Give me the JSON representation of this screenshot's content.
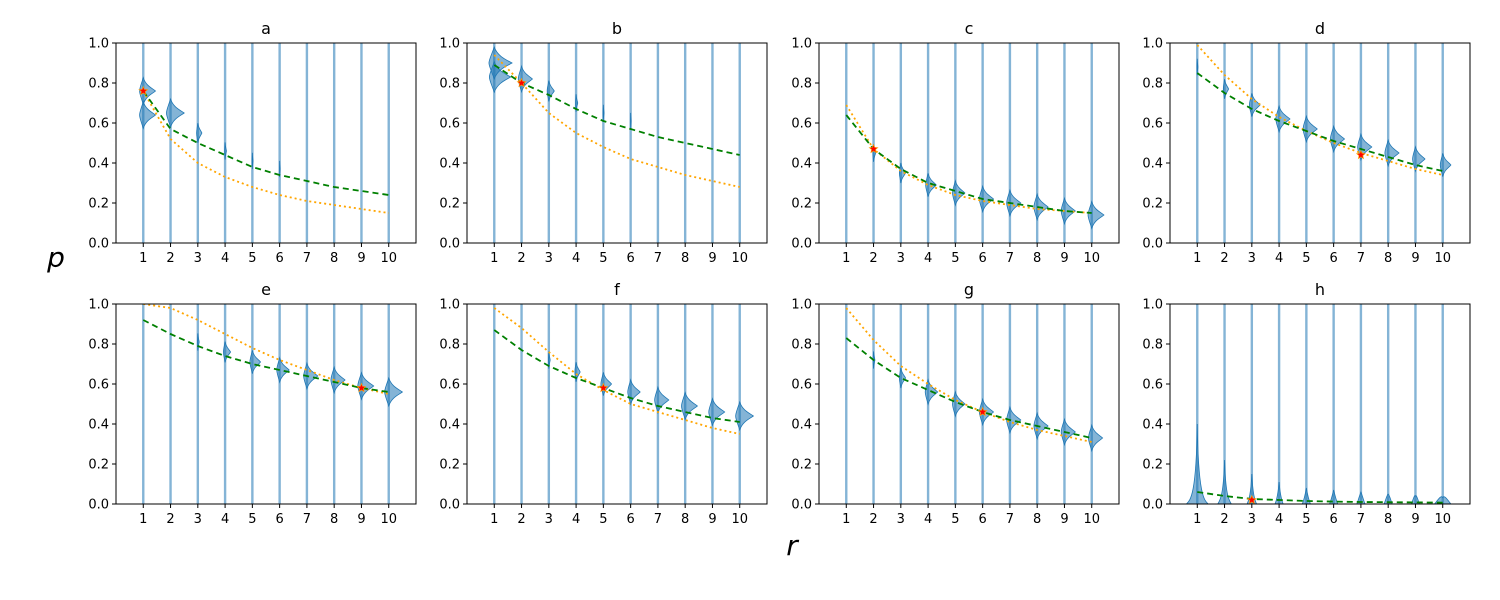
{
  "chart_data": {
    "type": "violin",
    "ylabel": "p",
    "xlabel": "r",
    "xticks": [
      1,
      2,
      3,
      4,
      5,
      6,
      7,
      8,
      9,
      10
    ],
    "yticks": [
      0.0,
      0.2,
      0.4,
      0.6,
      0.8,
      1.0
    ],
    "ytick_labels": [
      "0.0",
      "0.2",
      "0.4",
      "0.6",
      "0.8",
      "1.0"
    ],
    "ylim": [
      0,
      1
    ],
    "xlim": [
      0,
      11
    ],
    "colors": {
      "violin": "#1f77b4",
      "green": "#008000",
      "orange": "#ffa500",
      "marker": "#ff0000"
    },
    "panels": [
      {
        "title": "a",
        "highlight": [
          1,
          0.76
        ],
        "green": [
          0.76,
          0.57,
          0.5,
          0.44,
          0.38,
          0.34,
          0.31,
          0.28,
          0.26,
          0.24
        ],
        "orange": [
          0.76,
          0.52,
          0.4,
          0.33,
          0.28,
          0.24,
          0.21,
          0.19,
          0.17,
          0.15
        ],
        "violins": [
          {
            "x": 1,
            "y": 0.76,
            "w": 0.9
          },
          {
            "x": 1,
            "y": 0.64,
            "w": 0.9
          },
          {
            "x": 2,
            "y": 0.65,
            "w": 1.0
          },
          {
            "x": 3,
            "y": 0.55,
            "w": 0.3
          },
          {
            "x": 4,
            "y": 0.46,
            "w": 0.1
          },
          {
            "x": 5,
            "y": 0.41,
            "w": 0.05
          },
          {
            "x": 6,
            "y": 0.37,
            "w": 0.03
          }
        ]
      },
      {
        "title": "b",
        "highlight": [
          2,
          0.8
        ],
        "green": [
          0.89,
          0.8,
          0.74,
          0.67,
          0.61,
          0.57,
          0.53,
          0.5,
          0.47,
          0.44
        ],
        "orange": [
          0.94,
          0.8,
          0.65,
          0.55,
          0.48,
          0.42,
          0.38,
          0.34,
          0.31,
          0.28
        ],
        "violins": [
          {
            "x": 1,
            "y": 0.9,
            "w": 1.3
          },
          {
            "x": 1,
            "y": 0.83,
            "w": 1.2
          },
          {
            "x": 2,
            "y": 0.82,
            "w": 0.8
          },
          {
            "x": 3,
            "y": 0.76,
            "w": 0.4
          },
          {
            "x": 4,
            "y": 0.7,
            "w": 0.12
          },
          {
            "x": 5,
            "y": 0.65,
            "w": 0.05
          },
          {
            "x": 6,
            "y": 0.61,
            "w": 0.03
          }
        ]
      },
      {
        "title": "c",
        "highlight": [
          2,
          0.47
        ],
        "green": [
          0.64,
          0.47,
          0.37,
          0.3,
          0.26,
          0.22,
          0.2,
          0.18,
          0.16,
          0.15
        ],
        "orange": [
          0.69,
          0.47,
          0.36,
          0.29,
          0.24,
          0.21,
          0.19,
          0.17,
          0.16,
          0.15
        ],
        "violins": [
          {
            "x": 2,
            "y": 0.45,
            "w": 0.15
          },
          {
            "x": 3,
            "y": 0.35,
            "w": 0.35
          },
          {
            "x": 4,
            "y": 0.29,
            "w": 0.6
          },
          {
            "x": 5,
            "y": 0.25,
            "w": 0.7
          },
          {
            "x": 6,
            "y": 0.22,
            "w": 0.8
          },
          {
            "x": 7,
            "y": 0.2,
            "w": 0.8
          },
          {
            "x": 8,
            "y": 0.18,
            "w": 0.8
          },
          {
            "x": 9,
            "y": 0.16,
            "w": 0.8
          },
          {
            "x": 10,
            "y": 0.14,
            "w": 0.9
          }
        ]
      },
      {
        "title": "d",
        "highlight": [
          7,
          0.44
        ],
        "green": [
          0.85,
          0.75,
          0.67,
          0.61,
          0.56,
          0.51,
          0.47,
          0.43,
          0.39,
          0.36
        ],
        "orange": [
          0.99,
          0.84,
          0.72,
          0.63,
          0.56,
          0.5,
          0.45,
          0.41,
          0.37,
          0.34
        ],
        "violins": [
          {
            "x": 1,
            "y": 0.88,
            "w": 0.05
          },
          {
            "x": 2,
            "y": 0.77,
            "w": 0.3
          },
          {
            "x": 3,
            "y": 0.69,
            "w": 0.6
          },
          {
            "x": 4,
            "y": 0.62,
            "w": 0.8
          },
          {
            "x": 5,
            "y": 0.57,
            "w": 0.8
          },
          {
            "x": 6,
            "y": 0.52,
            "w": 0.8
          },
          {
            "x": 7,
            "y": 0.48,
            "w": 0.8
          },
          {
            "x": 8,
            "y": 0.45,
            "w": 0.8
          },
          {
            "x": 9,
            "y": 0.42,
            "w": 0.7
          },
          {
            "x": 10,
            "y": 0.39,
            "w": 0.6
          }
        ]
      },
      {
        "title": "e",
        "highlight": [
          9,
          0.58
        ],
        "green": [
          0.92,
          0.85,
          0.79,
          0.74,
          0.7,
          0.67,
          0.64,
          0.61,
          0.58,
          0.56
        ],
        "orange": [
          1.0,
          0.98,
          0.92,
          0.85,
          0.78,
          0.72,
          0.67,
          0.62,
          0.58,
          0.55
        ],
        "violins": [
          {
            "x": 3,
            "y": 0.81,
            "w": 0.1
          },
          {
            "x": 4,
            "y": 0.76,
            "w": 0.4
          },
          {
            "x": 5,
            "y": 0.71,
            "w": 0.6
          },
          {
            "x": 6,
            "y": 0.67,
            "w": 0.7
          },
          {
            "x": 7,
            "y": 0.64,
            "w": 0.8
          },
          {
            "x": 8,
            "y": 0.62,
            "w": 0.8
          },
          {
            "x": 9,
            "y": 0.59,
            "w": 0.9
          },
          {
            "x": 10,
            "y": 0.56,
            "w": 1.0
          }
        ]
      },
      {
        "title": "f",
        "highlight": [
          5,
          0.58
        ],
        "green": [
          0.87,
          0.77,
          0.69,
          0.63,
          0.58,
          0.53,
          0.49,
          0.46,
          0.43,
          0.41
        ],
        "orange": [
          0.98,
          0.88,
          0.76,
          0.65,
          0.57,
          0.5,
          0.46,
          0.42,
          0.38,
          0.35
        ],
        "violins": [
          {
            "x": 3,
            "y": 0.72,
            "w": 0.1
          },
          {
            "x": 4,
            "y": 0.66,
            "w": 0.3
          },
          {
            "x": 5,
            "y": 0.6,
            "w": 0.6
          },
          {
            "x": 6,
            "y": 0.56,
            "w": 0.7
          },
          {
            "x": 7,
            "y": 0.52,
            "w": 0.8
          },
          {
            "x": 8,
            "y": 0.49,
            "w": 0.9
          },
          {
            "x": 9,
            "y": 0.46,
            "w": 0.9
          },
          {
            "x": 10,
            "y": 0.44,
            "w": 1.0
          }
        ]
      },
      {
        "title": "g",
        "highlight": [
          6,
          0.46
        ],
        "green": [
          0.83,
          0.72,
          0.63,
          0.57,
          0.51,
          0.46,
          0.42,
          0.39,
          0.36,
          0.33
        ],
        "orange": [
          0.98,
          0.82,
          0.69,
          0.6,
          0.52,
          0.46,
          0.41,
          0.37,
          0.34,
          0.31
        ],
        "violins": [
          {
            "x": 2,
            "y": 0.72,
            "w": 0.1
          },
          {
            "x": 3,
            "y": 0.63,
            "w": 0.35
          },
          {
            "x": 4,
            "y": 0.56,
            "w": 0.7
          },
          {
            "x": 5,
            "y": 0.5,
            "w": 0.7
          },
          {
            "x": 6,
            "y": 0.46,
            "w": 0.8
          },
          {
            "x": 7,
            "y": 0.42,
            "w": 0.8
          },
          {
            "x": 8,
            "y": 0.39,
            "w": 0.8
          },
          {
            "x": 9,
            "y": 0.36,
            "w": 0.8
          },
          {
            "x": 10,
            "y": 0.33,
            "w": 0.8
          }
        ]
      },
      {
        "title": "h",
        "highlight": [
          3,
          0.02
        ],
        "green": [
          0.06,
          0.04,
          0.025,
          0.02,
          0.015,
          0.012,
          0.01,
          0.009,
          0.008,
          0.007
        ],
        "orange": [],
        "violins": [
          {
            "x": 1,
            "y": 0.0,
            "w": 0.8,
            "tall": 0.4
          },
          {
            "x": 2,
            "y": 0.0,
            "w": 0.5,
            "tall": 0.22
          },
          {
            "x": 3,
            "y": 0.0,
            "w": 0.35,
            "tall": 0.15
          },
          {
            "x": 4,
            "y": 0.0,
            "w": 0.3,
            "tall": 0.11
          },
          {
            "x": 5,
            "y": 0.0,
            "w": 0.3,
            "tall": 0.08
          },
          {
            "x": 6,
            "y": 0.0,
            "w": 0.3,
            "tall": 0.07
          },
          {
            "x": 7,
            "y": 0.0,
            "w": 0.3,
            "tall": 0.06
          },
          {
            "x": 8,
            "y": 0.0,
            "w": 0.3,
            "tall": 0.05
          },
          {
            "x": 9,
            "y": 0.0,
            "w": 0.3,
            "tall": 0.04
          },
          {
            "x": 10,
            "y": 0.0,
            "w": 0.6,
            "tall": 0.03
          }
        ]
      }
    ]
  }
}
